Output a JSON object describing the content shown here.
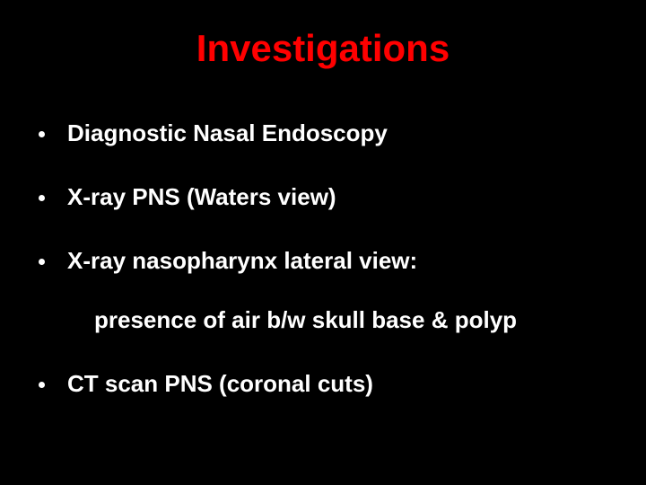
{
  "slide": {
    "background_color": "#000000",
    "title": {
      "text": "Investigations",
      "color": "#ff0000",
      "fontsize": 42,
      "font_weight": "bold"
    },
    "bullet_color": "#ffffff",
    "text_color": "#ffffff",
    "body_fontsize": 26,
    "items": [
      {
        "text": "Diagnostic Nasal Endoscopy"
      },
      {
        "text": "X-ray PNS (Waters view)"
      },
      {
        "text": "X-ray nasopharynx lateral view:"
      }
    ],
    "sub_text": "presence of air b/w skull base & polyp",
    "last_item": {
      "text": "CT scan PNS (coronal cuts)"
    }
  }
}
